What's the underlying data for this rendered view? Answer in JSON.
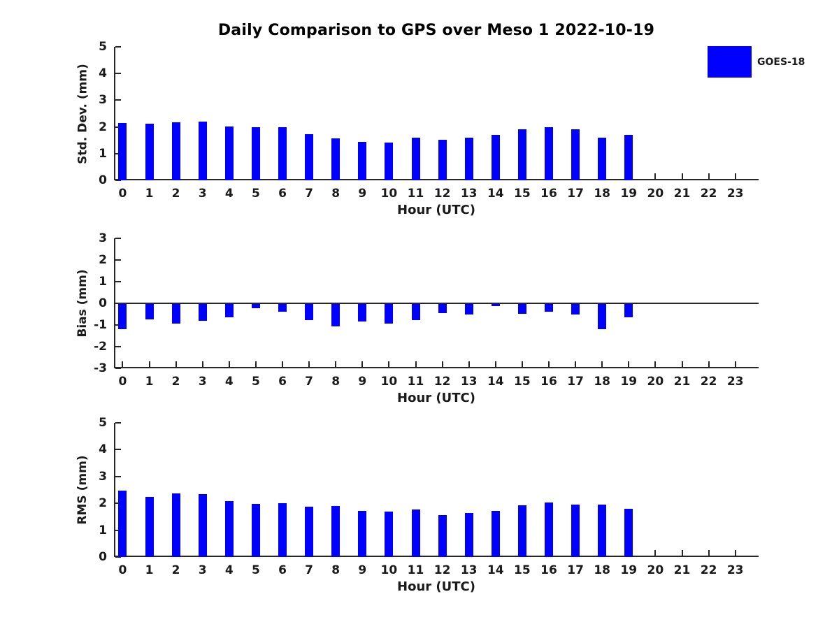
{
  "title": "Daily Comparison to GPS over Meso 1 2022-10-19",
  "legend": {
    "label": "GOES-18",
    "swatch_color": "#0000ff"
  },
  "colors": {
    "bar": "#0000ff",
    "axis": "#262626",
    "text": "#1a1a1a",
    "title": "#000000"
  },
  "xlabel": "Hour (UTC)",
  "hours": [
    "0",
    "1",
    "2",
    "3",
    "4",
    "5",
    "6",
    "7",
    "8",
    "9",
    "10",
    "11",
    "12",
    "13",
    "14",
    "15",
    "16",
    "17",
    "18",
    "19",
    "20",
    "21",
    "22",
    "23"
  ],
  "chart_data": [
    {
      "type": "bar",
      "name": "std-dev",
      "ylabel": "Std. Dev. (mm)",
      "xlabel": "Hour (UTC)",
      "series_name": "GOES-18",
      "categories": [
        "0",
        "1",
        "2",
        "3",
        "4",
        "5",
        "6",
        "7",
        "8",
        "9",
        "10",
        "11",
        "12",
        "13",
        "14",
        "15",
        "16",
        "17",
        "18",
        "19",
        "20",
        "21",
        "22",
        "23"
      ],
      "values": [
        2.14,
        2.11,
        2.17,
        2.2,
        2.01,
        1.98,
        1.98,
        1.72,
        1.57,
        1.45,
        1.41,
        1.6,
        1.52,
        1.59,
        1.7,
        1.9,
        2.0,
        1.91,
        1.6,
        1.71,
        null,
        null,
        null,
        null
      ],
      "ylim": [
        0,
        5
      ],
      "yticks": [
        5,
        4,
        3,
        2,
        1,
        0
      ],
      "grid": false,
      "legend_position": "upper-right-outside"
    },
    {
      "type": "bar",
      "name": "bias",
      "ylabel": "Bias (mm)",
      "xlabel": "Hour (UTC)",
      "series_name": "GOES-18",
      "categories": [
        "0",
        "1",
        "2",
        "3",
        "4",
        "5",
        "6",
        "7",
        "8",
        "9",
        "10",
        "11",
        "12",
        "13",
        "14",
        "15",
        "16",
        "17",
        "18",
        "19",
        "20",
        "21",
        "22",
        "23"
      ],
      "values": [
        -1.2,
        -0.73,
        -0.95,
        -0.81,
        -0.65,
        -0.21,
        -0.4,
        -0.77,
        -1.07,
        -0.85,
        -0.92,
        -0.78,
        -0.44,
        -0.51,
        -0.12,
        -0.47,
        -0.4,
        -0.5,
        -1.19,
        -0.63,
        null,
        null,
        null,
        null
      ],
      "ylim": [
        -3,
        3
      ],
      "yticks": [
        3,
        2,
        1,
        0,
        -1,
        -2,
        -3
      ],
      "grid": false,
      "zero_line": true
    },
    {
      "type": "bar",
      "name": "rms",
      "ylabel": "RMS (mm)",
      "xlabel": "Hour (UTC)",
      "series_name": "GOES-18",
      "categories": [
        "0",
        "1",
        "2",
        "3",
        "4",
        "5",
        "6",
        "7",
        "8",
        "9",
        "10",
        "11",
        "12",
        "13",
        "14",
        "15",
        "16",
        "17",
        "18",
        "19",
        "20",
        "21",
        "22",
        "23"
      ],
      "values": [
        2.47,
        2.25,
        2.37,
        2.35,
        2.08,
        1.98,
        2.01,
        1.87,
        1.89,
        1.71,
        1.68,
        1.78,
        1.55,
        1.63,
        1.71,
        1.92,
        2.03,
        1.96,
        1.96,
        1.8,
        null,
        null,
        null,
        null
      ],
      "ylim": [
        0,
        5
      ],
      "yticks": [
        5,
        4,
        3,
        2,
        1,
        0
      ],
      "grid": false
    }
  ]
}
